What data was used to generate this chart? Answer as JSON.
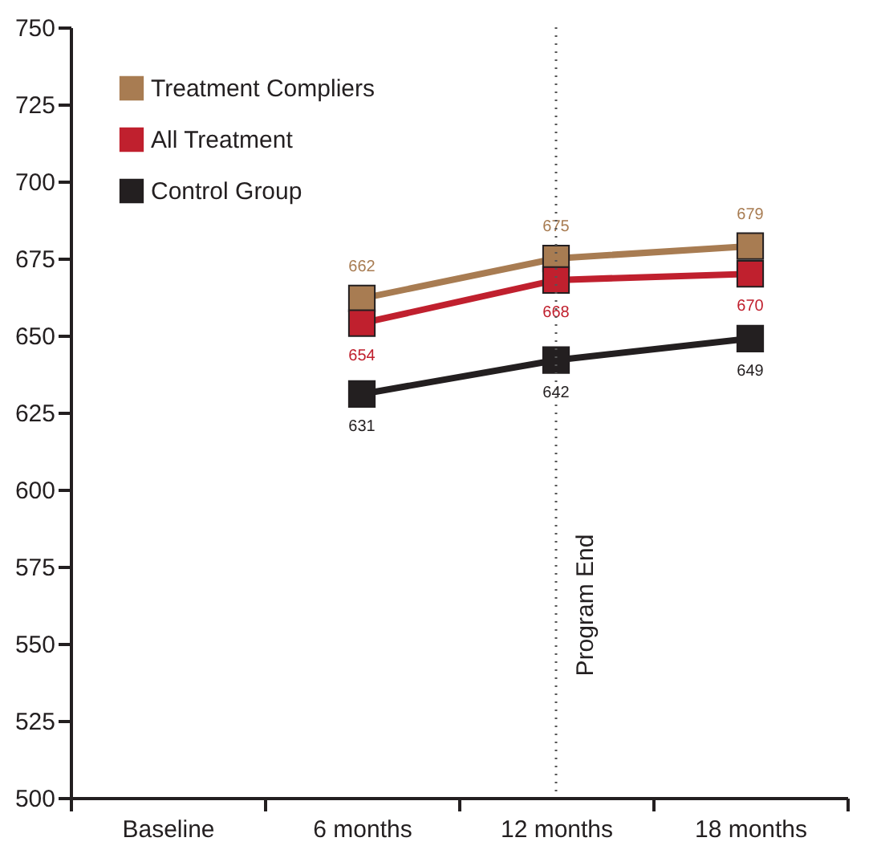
{
  "chart_data": {
    "type": "line",
    "categories": [
      "Baseline",
      "6 months",
      "12 months",
      "18 months"
    ],
    "series": [
      {
        "name": "Treatment Compliers",
        "color": "#a87c52",
        "values": [
          null,
          662,
          675,
          679
        ]
      },
      {
        "name": "All Treatment",
        "color": "#c0202e",
        "values": [
          null,
          654,
          668,
          670
        ]
      },
      {
        "name": "Control Group",
        "color": "#231f20",
        "values": [
          null,
          631,
          642,
          649
        ]
      }
    ],
    "ylim": [
      500,
      750
    ],
    "yticks": [
      500,
      525,
      550,
      575,
      600,
      625,
      650,
      675,
      700,
      725,
      750
    ],
    "ref_lines": [
      {
        "axis": "x",
        "value": "12 months",
        "label": "Program End",
        "color": "#555555",
        "line_style": "dotted"
      }
    ],
    "data_labels": true,
    "legend": "top left",
    "marker": "square",
    "line_style": "solid",
    "grid": false
  }
}
